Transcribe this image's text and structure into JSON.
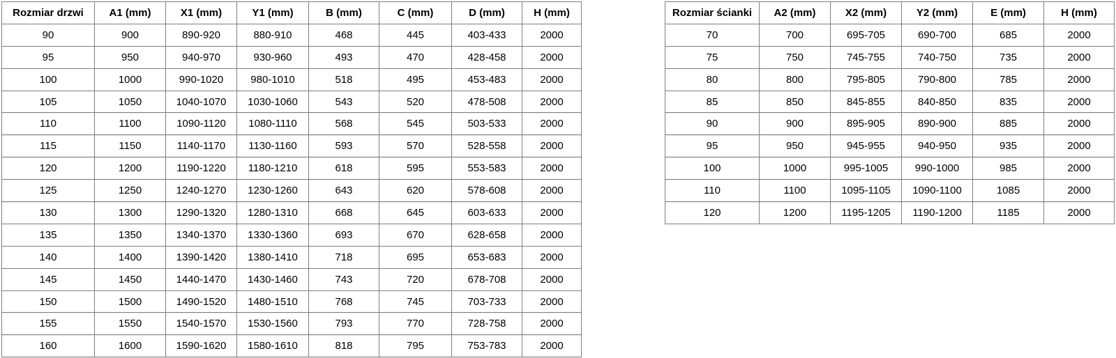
{
  "colors": {
    "background": "#ffffff",
    "table_border": "#7f7f7f",
    "text": "#000000"
  },
  "tables": [
    {
      "name": "door-sizes-table",
      "headers": [
        "Rozmiar drzwi",
        "A1 (mm)",
        "X1 (mm)",
        "Y1 (mm)",
        "B (mm)",
        "C (mm)",
        "D (mm)",
        "H (mm)"
      ],
      "rows": [
        [
          "90",
          "900",
          "890-920",
          "880-910",
          "468",
          "445",
          "403-433",
          "2000"
        ],
        [
          "95",
          "950",
          "940-970",
          "930-960",
          "493",
          "470",
          "428-458",
          "2000"
        ],
        [
          "100",
          "1000",
          "990-1020",
          "980-1010",
          "518",
          "495",
          "453-483",
          "2000"
        ],
        [
          "105",
          "1050",
          "1040-1070",
          "1030-1060",
          "543",
          "520",
          "478-508",
          "2000"
        ],
        [
          "110",
          "1100",
          "1090-1120",
          "1080-1110",
          "568",
          "545",
          "503-533",
          "2000"
        ],
        [
          "115",
          "1150",
          "1140-1170",
          "1130-1160",
          "593",
          "570",
          "528-558",
          "2000"
        ],
        [
          "120",
          "1200",
          "1190-1220",
          "1180-1210",
          "618",
          "595",
          "553-583",
          "2000"
        ],
        [
          "125",
          "1250",
          "1240-1270",
          "1230-1260",
          "643",
          "620",
          "578-608",
          "2000"
        ],
        [
          "130",
          "1300",
          "1290-1320",
          "1280-1310",
          "668",
          "645",
          "603-633",
          "2000"
        ],
        [
          "135",
          "1350",
          "1340-1370",
          "1330-1360",
          "693",
          "670",
          "628-658",
          "2000"
        ],
        [
          "140",
          "1400",
          "1390-1420",
          "1380-1410",
          "718",
          "695",
          "653-683",
          "2000"
        ],
        [
          "145",
          "1450",
          "1440-1470",
          "1430-1460",
          "743",
          "720",
          "678-708",
          "2000"
        ],
        [
          "150",
          "1500",
          "1490-1520",
          "1480-1510",
          "768",
          "745",
          "703-733",
          "2000"
        ],
        [
          "155",
          "1550",
          "1540-1570",
          "1530-1560",
          "793",
          "770",
          "728-758",
          "2000"
        ],
        [
          "160",
          "1600",
          "1590-1620",
          "1580-1610",
          "818",
          "795",
          "753-783",
          "2000"
        ]
      ]
    },
    {
      "name": "wall-sizes-table",
      "headers": [
        "Rozmiar ścianki",
        "A2 (mm)",
        "X2 (mm)",
        "Y2 (mm)",
        "E (mm)",
        "H (mm)"
      ],
      "rows": [
        [
          "70",
          "700",
          "695-705",
          "690-700",
          "685",
          "2000"
        ],
        [
          "75",
          "750",
          "745-755",
          "740-750",
          "735",
          "2000"
        ],
        [
          "80",
          "800",
          "795-805",
          "790-800",
          "785",
          "2000"
        ],
        [
          "85",
          "850",
          "845-855",
          "840-850",
          "835",
          "2000"
        ],
        [
          "90",
          "900",
          "895-905",
          "890-900",
          "885",
          "2000"
        ],
        [
          "95",
          "950",
          "945-955",
          "940-950",
          "935",
          "2000"
        ],
        [
          "100",
          "1000",
          "995-1005",
          "990-1000",
          "985",
          "2000"
        ],
        [
          "110",
          "1100",
          "1095-1105",
          "1090-1100",
          "1085",
          "2000"
        ],
        [
          "120",
          "1200",
          "1195-1205",
          "1190-1200",
          "1185",
          "2000"
        ]
      ]
    }
  ]
}
